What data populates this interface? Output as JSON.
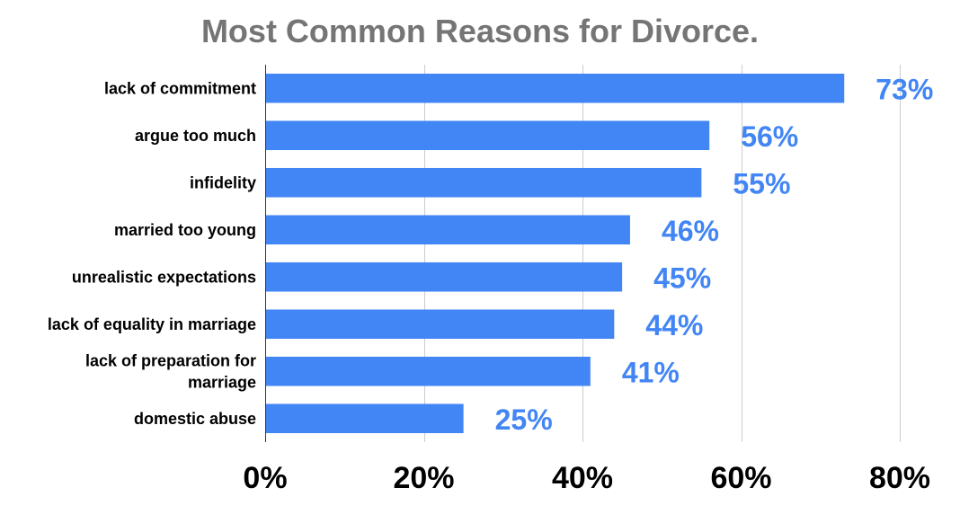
{
  "chart_data": {
    "type": "bar",
    "orientation": "horizontal",
    "title": "Most Common Reasons for Divorce.",
    "categories": [
      [
        "lack of commitment"
      ],
      [
        "argue too much"
      ],
      [
        "infidelity"
      ],
      [
        "married too young"
      ],
      [
        "unrealistic expectations"
      ],
      [
        "lack of equality in marriage"
      ],
      [
        "lack of preparation for",
        "marriage"
      ],
      [
        "domestic abuse"
      ]
    ],
    "values": [
      73,
      56,
      55,
      46,
      45,
      44,
      41,
      25
    ],
    "data_labels": [
      "73%",
      "56%",
      "55%",
      "46%",
      "45%",
      "44%",
      "41%",
      "25%"
    ],
    "xlim": [
      0,
      80
    ],
    "x_ticks": [
      0,
      20,
      40,
      60,
      80
    ],
    "x_tick_labels": [
      "0%",
      "20%",
      "40%",
      "60%",
      "80%"
    ],
    "grid": "vertical",
    "bar_color": "#4285f4",
    "label_color": "#4285f4",
    "title_color": "#757575"
  }
}
